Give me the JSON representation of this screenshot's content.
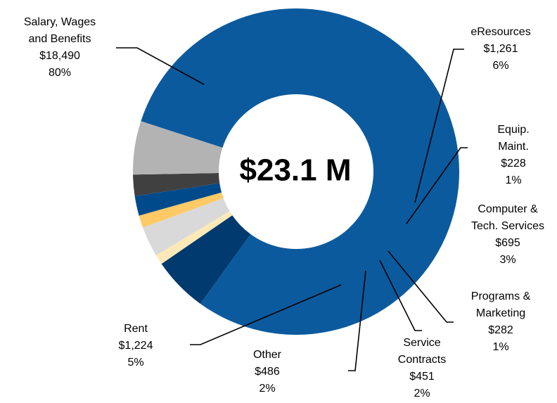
{
  "chart_data": {
    "type": "pie",
    "center_label": "$23.1 M",
    "categories": [
      [
        "Salary, Wages",
        "and Benefits"
      ],
      [
        "eResources"
      ],
      [
        "Equip.",
        "Maint."
      ],
      [
        "Computer &",
        "Tech. Services"
      ],
      [
        "Programs &",
        "Marketing"
      ],
      [
        "Service",
        "Contracts"
      ],
      [
        "Other"
      ],
      [
        "Rent"
      ]
    ],
    "values": [
      18490,
      1261,
      228,
      695,
      282,
      451,
      486,
      1224
    ],
    "value_labels": [
      "$18,490",
      "$1,261",
      "$228",
      "$695",
      "$282",
      "$451",
      "$486",
      "$1,224"
    ],
    "percent_labels": [
      "80%",
      "6%",
      "1%",
      "3%",
      "1%",
      "2%",
      "2%",
      "5%"
    ],
    "colors": [
      "#0b5a9e",
      "#003a6e",
      "#fde9b8",
      "#d9d9d9",
      "#ffc966",
      "#004a8c",
      "#404040",
      "#b3b3b3"
    ]
  }
}
